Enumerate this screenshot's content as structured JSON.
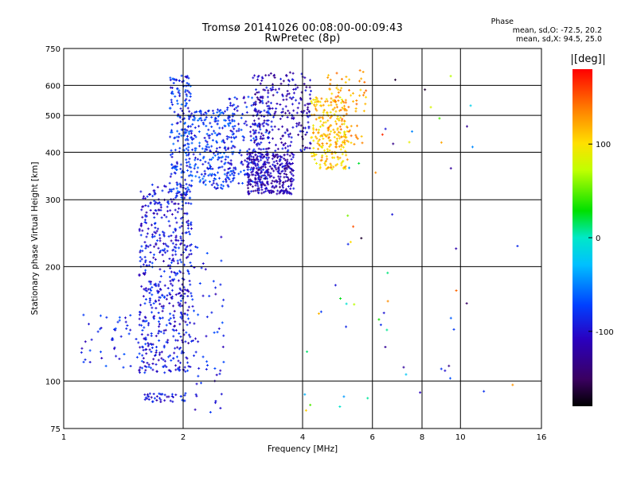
{
  "title": {
    "line1": "Tromsø 20141026 00:08:00-00:09:43",
    "line2": "RwPretec (8p)"
  },
  "phase_box": {
    "heading": "Phase",
    "line_o": "mean, sd,O: -72.5, 20.2",
    "line_x": "mean, sd,X:  94.5, 25.0"
  },
  "colorbar": {
    "unit": "[deg]",
    "ticks": [
      {
        "value": 100,
        "label": "100"
      },
      {
        "value": 0,
        "label": "0"
      },
      {
        "value": -100,
        "label": "-100"
      }
    ],
    "range": [
      -180,
      180
    ],
    "colormap": "rainbow (black-purple-blue-cyan-green-yellow-orange-red)"
  },
  "chart_data": {
    "type": "scatter",
    "xlabel": "Frequency [MHz]",
    "ylabel": "Stationary phase Virtual Height [km]",
    "x_scale": "log",
    "y_scale": "log",
    "xlim": [
      1,
      16
    ],
    "ylim": [
      75,
      750
    ],
    "x_ticks": [
      1,
      2,
      4,
      6,
      8,
      10,
      16
    ],
    "y_ticks": [
      75,
      100,
      200,
      300,
      400,
      500,
      600,
      750
    ],
    "grid": true,
    "color_encodes": "phase [deg]",
    "clusters": [
      {
        "x_range": [
          1.55,
          2.1
        ],
        "y_range": [
          105,
          330
        ],
        "phase": -95,
        "n": 560,
        "desc": "low frequency O-trace"
      },
      {
        "x_range": [
          1.1,
          1.65
        ],
        "y_range": [
          108,
          150
        ],
        "phase": -88,
        "n": 55
      },
      {
        "x_range": [
          1.85,
          2.1
        ],
        "y_range": [
          300,
          640
        ],
        "phase": -82,
        "n": 200
      },
      {
        "x_range": [
          2.05,
          2.7
        ],
        "y_range": [
          320,
          520
        ],
        "phase": -78,
        "n": 260
      },
      {
        "x_range": [
          2.1,
          2.55
        ],
        "y_range": [
          80,
          240
        ],
        "phase": -92,
        "n": 60
      },
      {
        "x_range": [
          2.55,
          3.3
        ],
        "y_range": [
          330,
          560
        ],
        "phase": -88,
        "n": 170
      },
      {
        "x_range": [
          2.9,
          3.8
        ],
        "y_range": [
          310,
          400
        ],
        "phase": -115,
        "n": 320,
        "desc": "dense O-trace"
      },
      {
        "x_range": [
          3.0,
          4.2
        ],
        "y_range": [
          400,
          650
        ],
        "phase": -110,
        "n": 260
      },
      {
        "x_range": [
          4.2,
          5.2
        ],
        "y_range": [
          360,
          560
        ],
        "phase": 110,
        "n": 230,
        "desc": "X-trace"
      },
      {
        "x_range": [
          4.6,
          5.8
        ],
        "y_range": [
          420,
          660
        ],
        "phase": 125,
        "n": 90
      },
      {
        "x_range": [
          1.6,
          2.05
        ],
        "y_range": [
          88,
          93
        ],
        "phase": -95,
        "n": 40
      },
      {
        "x_range": [
          4.0,
          14.0
        ],
        "y_range": [
          80,
          650
        ],
        "phase": 0,
        "n": 60,
        "desc": "sparse noise (mixed colors)"
      }
    ]
  }
}
